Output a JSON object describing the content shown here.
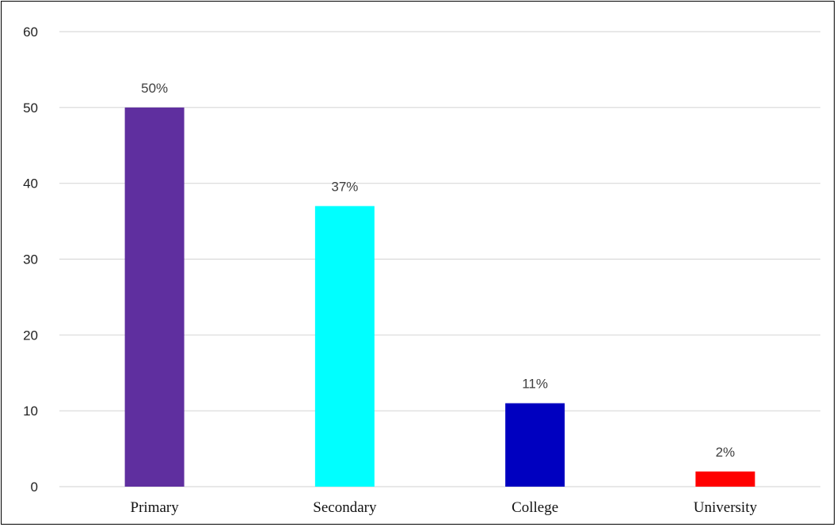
{
  "chart_data": {
    "type": "bar",
    "categories": [
      "Primary",
      "Secondary",
      "College",
      "University"
    ],
    "values": [
      50,
      37,
      11,
      2
    ],
    "data_labels": [
      "50%",
      "37%",
      "11%",
      "2%"
    ],
    "colors": [
      "#5f2f9f",
      "#00ffff",
      "#0000c0",
      "#ff0000"
    ],
    "ylim": [
      0,
      60
    ],
    "yticks": [
      "0",
      "10",
      "20",
      "30",
      "40",
      "50",
      "60"
    ],
    "grid": true,
    "legend": "none"
  }
}
